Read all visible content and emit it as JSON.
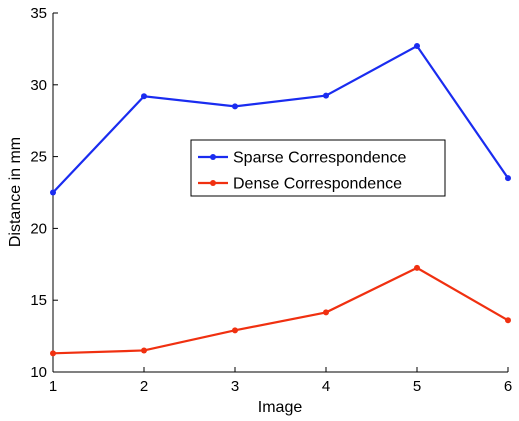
{
  "chart_data": {
    "type": "line",
    "xlabel": "Image",
    "ylabel": "Distance in  mm",
    "x": [
      1,
      2,
      3,
      4,
      5,
      6
    ],
    "xlim": [
      1,
      6
    ],
    "ylim": [
      10,
      35
    ],
    "xticks": [
      "1",
      "2",
      "3",
      "4",
      "5",
      "6"
    ],
    "yticks": [
      "10",
      "15",
      "20",
      "25",
      "30",
      "35"
    ],
    "grid": false,
    "legend_position": "center-right",
    "series": [
      {
        "name": "Sparse Correspondence",
        "color": "#1a2cf0",
        "values": [
          22.5,
          29.2,
          28.5,
          29.25,
          32.7,
          23.5
        ]
      },
      {
        "name": "Dense Correspondence",
        "color": "#f03010",
        "values": [
          11.3,
          11.5,
          12.9,
          14.15,
          17.25,
          13.6
        ]
      }
    ]
  }
}
